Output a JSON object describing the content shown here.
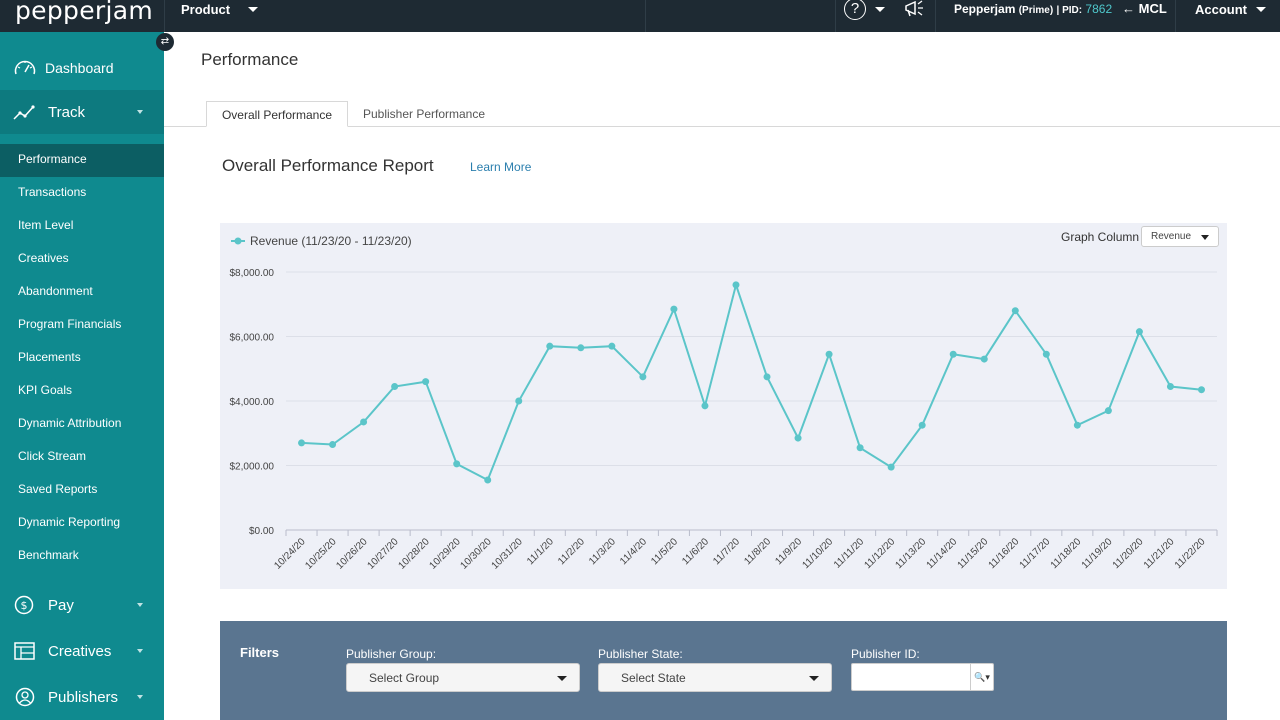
{
  "topbar": {
    "logo": "pepperjam",
    "product_label": "Product",
    "help_label": "?",
    "account_info_name": "Pepperjam",
    "account_info_prime": "(Prime)",
    "account_info_sep": "| PID:",
    "account_info_pid": "7862",
    "mcl_label": "← MCL",
    "account_label": "Account"
  },
  "sidebar": {
    "toggle_label": "⇄",
    "main_items": [
      {
        "label": "Dashboard",
        "icon": "gauge-icon"
      },
      {
        "label": "Track",
        "icon": "trend-line-icon"
      },
      {
        "label": "Pay",
        "icon": "dollar-circle-icon"
      },
      {
        "label": "Creatives",
        "icon": "layout-icon"
      },
      {
        "label": "Publishers",
        "icon": "users-icon"
      }
    ],
    "track_subitems": [
      "Performance",
      "Transactions",
      "Item Level",
      "Creatives",
      "Abandonment",
      "Program Financials",
      "Placements",
      "KPI Goals",
      "Dynamic Attribution",
      "Click Stream",
      "Saved Reports",
      "Dynamic Reporting",
      "Benchmark"
    ],
    "active_subitem": "Performance"
  },
  "main": {
    "page_title": "Performance",
    "tabs": [
      {
        "label": "Overall Performance",
        "active": true
      },
      {
        "label": "Publisher Performance",
        "active": false
      }
    ],
    "report_title": "Overall Performance Report",
    "learn_more": "Learn More"
  },
  "chart_controls": {
    "graph_column_label": "Graph Column",
    "graph_column_value": "Revenue"
  },
  "chart_data": {
    "type": "line",
    "series": [
      {
        "name": "Revenue (11/23/20 - 11/23/20)",
        "color": "#5bc5c9",
        "values": [
          2700,
          2650,
          3350,
          4450,
          4600,
          2050,
          1550,
          4000,
          5700,
          5650,
          5700,
          4750,
          6850,
          3850,
          7600,
          4750,
          2850,
          5450,
          2550,
          1950,
          3250,
          5450,
          5300,
          6800,
          5450,
          3250,
          3700,
          6150,
          4450,
          4350
        ]
      }
    ],
    "x": [
      "10/24/20",
      "10/25/20",
      "10/26/20",
      "10/27/20",
      "10/28/20",
      "10/29/20",
      "10/30/20",
      "10/31/20",
      "11/1/20",
      "11/2/20",
      "11/3/20",
      "11/4/20",
      "11/5/20",
      "11/6/20",
      "11/7/20",
      "11/8/20",
      "11/9/20",
      "11/10/20",
      "11/11/20",
      "11/12/20",
      "11/13/20",
      "11/14/20",
      "11/15/20",
      "11/16/20",
      "11/17/20",
      "11/18/20",
      "11/19/20",
      "11/20/20",
      "11/21/20",
      "11/22/20"
    ],
    "ylim": [
      0,
      8000
    ],
    "y_ticks": [
      0,
      2000,
      4000,
      6000,
      8000
    ],
    "y_tick_labels": [
      "$0.00",
      "$2,000.00",
      "$4,000.00",
      "$6,000.00",
      "$8,000.00"
    ],
    "grid": true,
    "legend": "top-left"
  },
  "filters": {
    "title": "Filters",
    "publisher_group_label": "Publisher Group:",
    "publisher_group_value": "Select Group",
    "publisher_state_label": "Publisher State:",
    "publisher_state_value": "Select State",
    "publisher_id_label": "Publisher ID:",
    "publisher_id_value": "",
    "search_icon_glyph": "🔍▾"
  }
}
